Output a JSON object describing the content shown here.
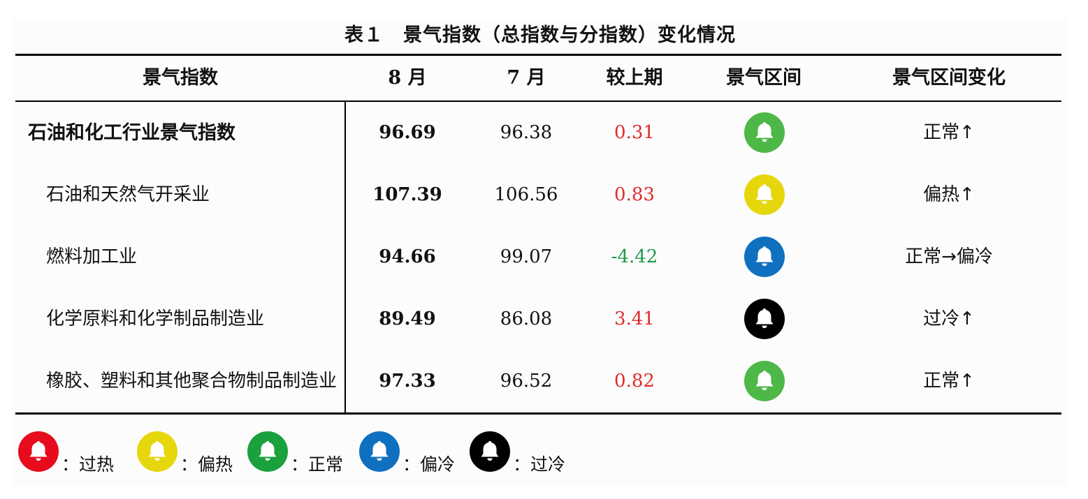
{
  "title": "表１　景气指数（总指数与分指数）变化情况",
  "headers": [
    "景气指数",
    "8 月",
    "7 月",
    "较上期",
    "景气区间",
    "景气区间变化"
  ],
  "rows": [
    {
      "name": "石油和化工行业景气指数",
      "aug": "96.69",
      "jul": "96.38",
      "delta": "0.31",
      "delta_sign": "up",
      "zone_color": "#4db848",
      "change": "正常↑"
    },
    {
      "name": "石油和天然气开采业",
      "aug": "107.39",
      "jul": "106.56",
      "delta": "0.83",
      "delta_sign": "up",
      "zone_color": "#e6d60c",
      "change": "偏热↑"
    },
    {
      "name": "燃料加工业",
      "aug": "94.66",
      "jul": "99.07",
      "delta": "-4.42",
      "delta_sign": "down",
      "zone_color": "#1070c0",
      "change": "正常→偏冷"
    },
    {
      "name": "化学原料和化学制品制造业",
      "aug": "89.49",
      "jul": "86.08",
      "delta": "3.41",
      "delta_sign": "up",
      "zone_color": "#000000",
      "change": "过冷↑"
    },
    {
      "name": "橡胶、塑料和其他聚合物制品制造业",
      "aug": "97.33",
      "jul": "96.52",
      "delta": "0.82",
      "delta_sign": "up",
      "zone_color": "#4db848",
      "change": "正常↑"
    }
  ],
  "legend": [
    {
      "color": "#e60c1e",
      "label": "：过热"
    },
    {
      "color": "#e6d60c",
      "label": "：偏热"
    },
    {
      "color": "#1aa03c",
      "label": "：正常"
    },
    {
      "color": "#1070c0",
      "label": "：偏冷"
    },
    {
      "color": "#000000",
      "label": "：过冷"
    }
  ],
  "colors": {
    "positive": "#e02b2b",
    "negative": "#1d9a4a"
  },
  "icon": "bell-icon"
}
